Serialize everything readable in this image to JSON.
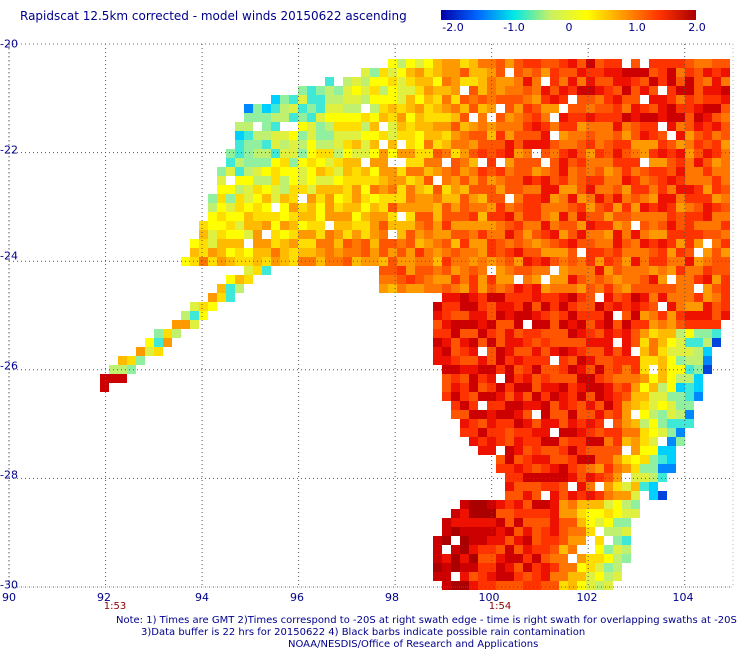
{
  "title": "Rapidscat 12.5km corrected - model winds 20150622 ascending",
  "colorbar": {
    "ticks": [
      "-2.0",
      "-1.0",
      "0",
      "1.0",
      "2.0"
    ],
    "colors": [
      "#0000aa",
      "#0066ff",
      "#00e8e8",
      "#c8f064",
      "#ffff00",
      "#ff9900",
      "#ff3300",
      "#aa0000"
    ]
  },
  "map": {
    "x_ticks": [
      "90",
      "92",
      "94",
      "96",
      "98",
      "100",
      "102",
      "104"
    ],
    "y_ticks": [
      "-20",
      "-22",
      "-24",
      "-26",
      "-28",
      "-30"
    ],
    "lon_range": [
      90,
      105
    ],
    "lat_range": [
      -30,
      -20
    ],
    "grid": true,
    "time_labels": [
      {
        "text": "1:53",
        "lon": 92.2
      },
      {
        "text": "1:54",
        "lon": 100
      }
    ]
  },
  "notes": [
    "Note: 1) Times are GMT 2)Times correspond to -20S at right swath edge - time is right swath for overlapping swaths at -20S",
    "3)Data buffer is 22 hrs for 20150622 4) Black barbs indicate possible rain contamination",
    "NOAA/NESDIS/Office of Research and Applications"
  ]
}
